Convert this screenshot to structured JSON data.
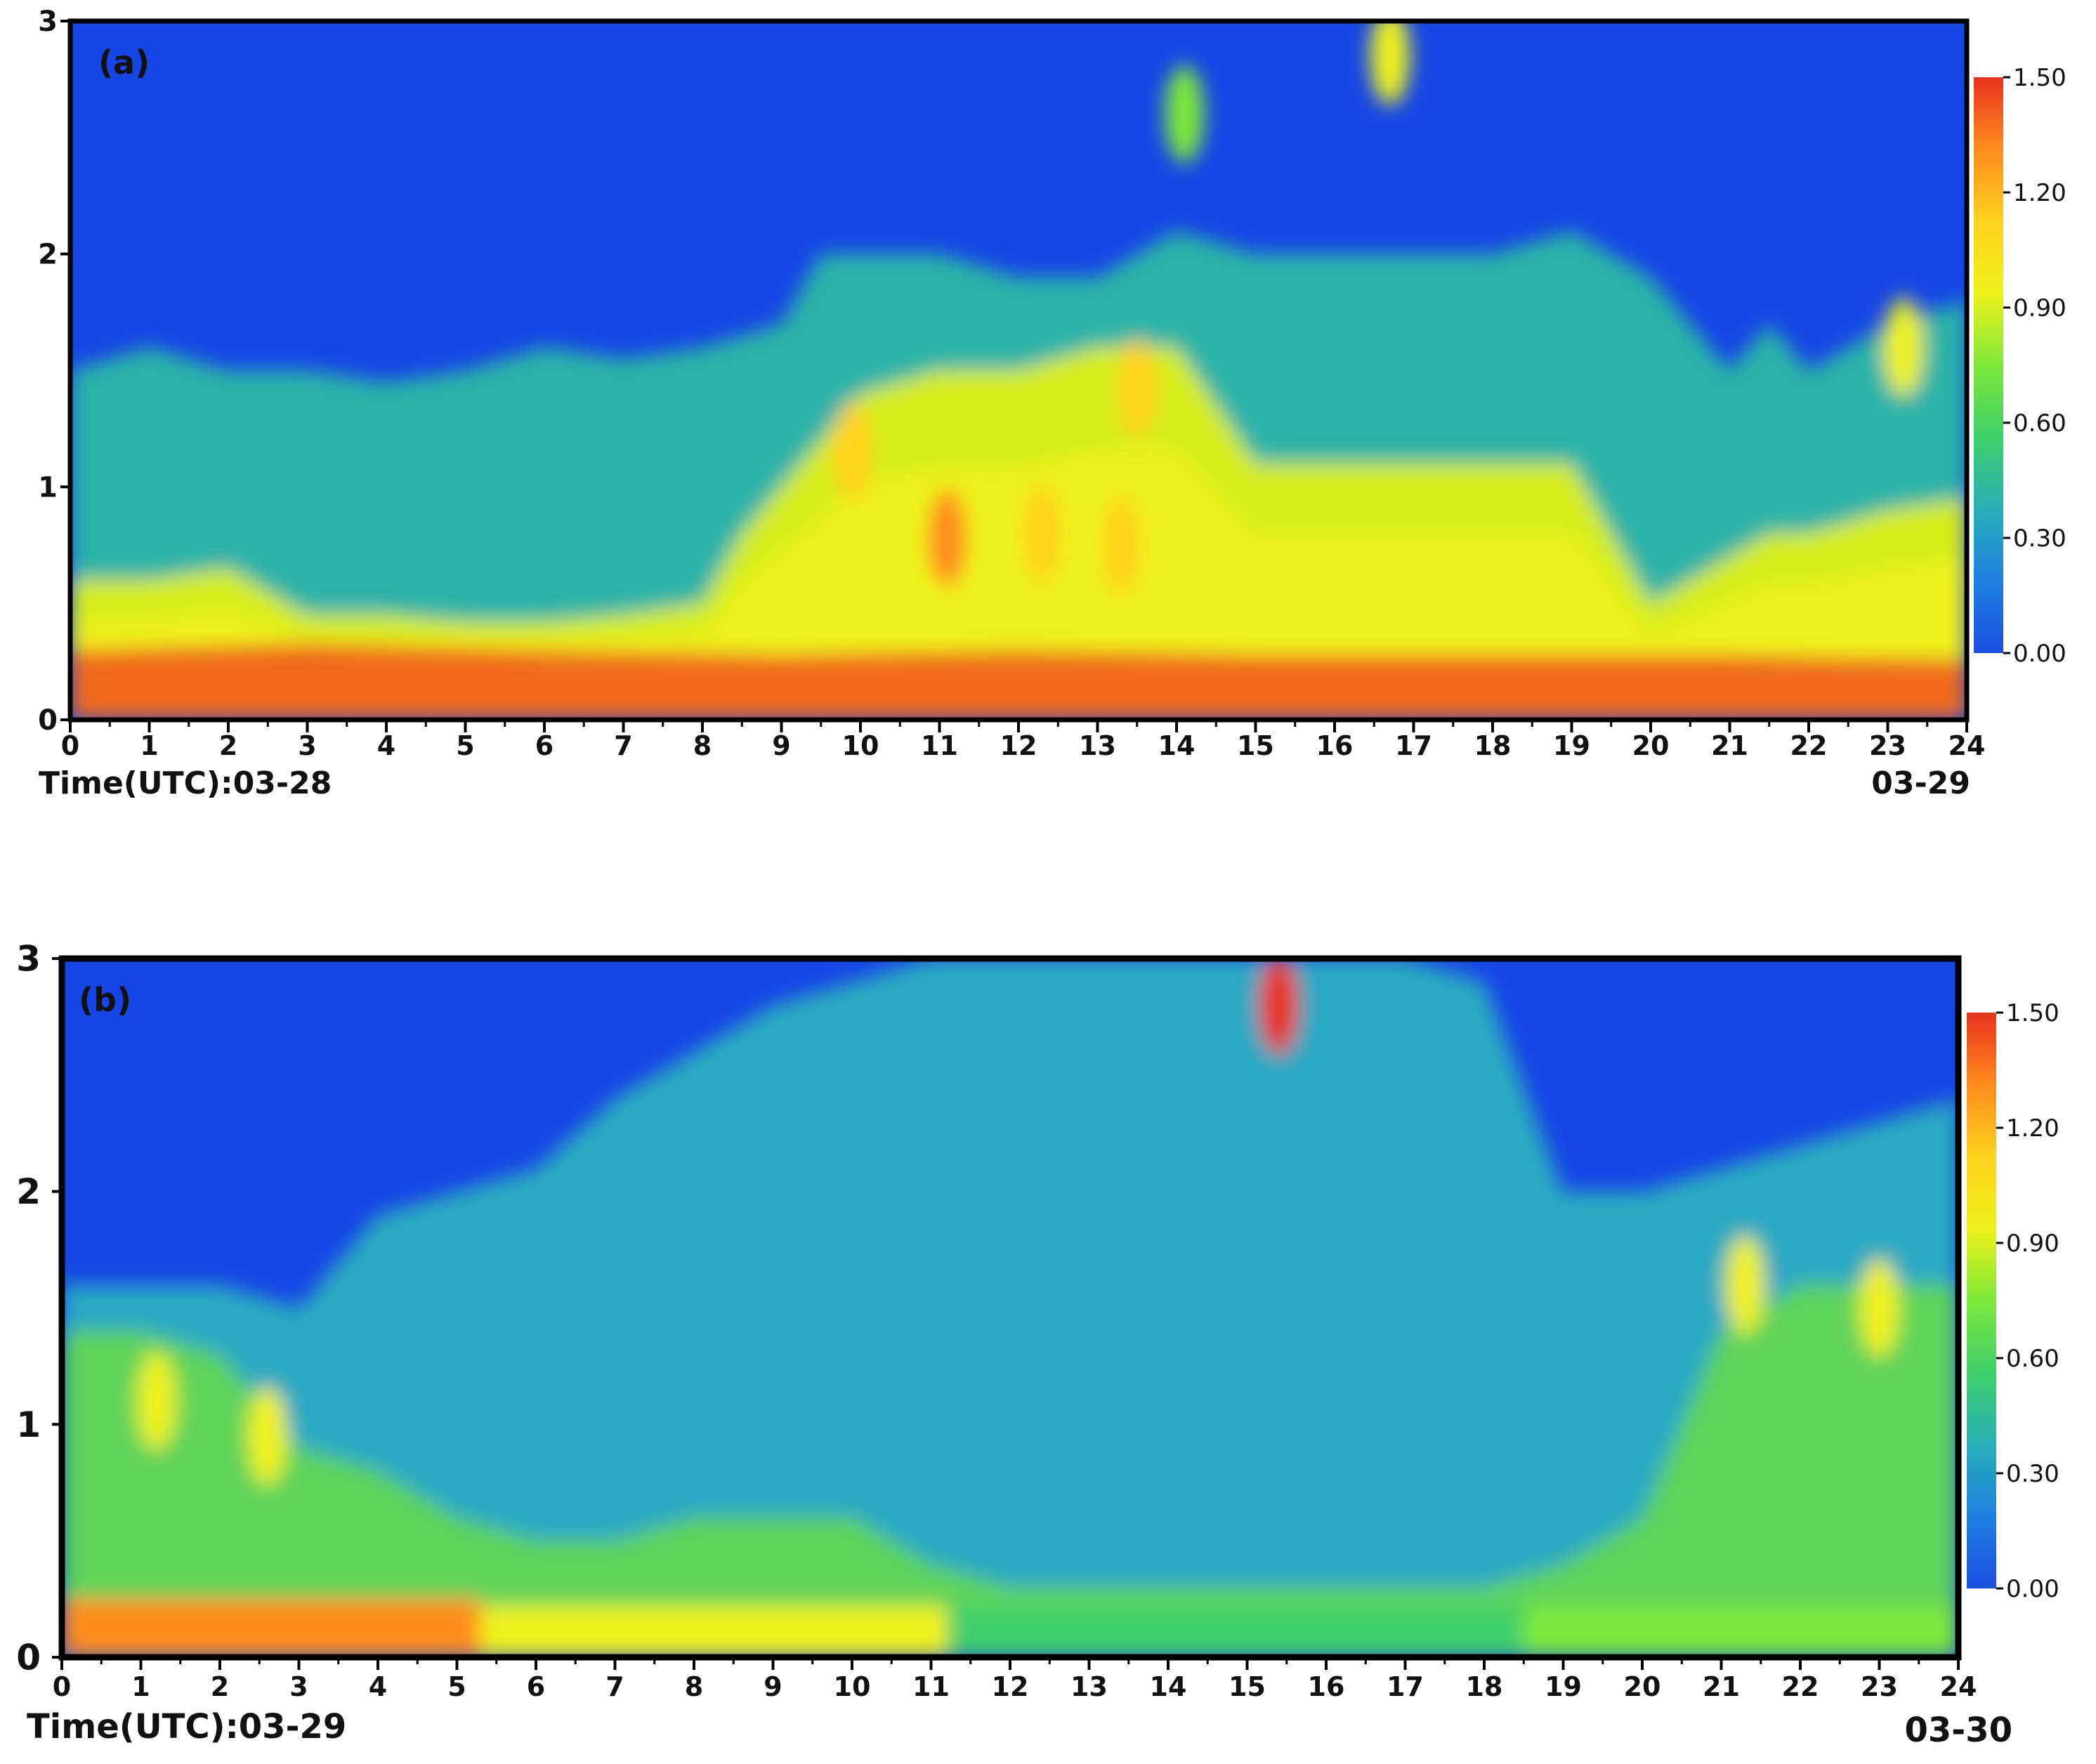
{
  "colors": {
    "scale": [
      "#1a4fe0",
      "#1f7fe0",
      "#27b0b8",
      "#3fcf6a",
      "#7de83a",
      "#eef21a",
      "#ffd21e",
      "#ff8c1e",
      "#e8321e"
    ],
    "frame": "#000000",
    "low_fill": "#1646e6"
  },
  "chart_data": [
    {
      "type": "heatmap",
      "panel_label": "(a)",
      "x_start_label": "Time(UTC):03-28",
      "x_end_label": "03-29",
      "xlim": [
        0,
        24
      ],
      "ylim": [
        0,
        3
      ],
      "x_ticks": [
        "0",
        "1",
        "2",
        "3",
        "4",
        "5",
        "6",
        "7",
        "8",
        "9",
        "10",
        "11",
        "12",
        "13",
        "14",
        "15",
        "16",
        "17",
        "18",
        "19",
        "20",
        "21",
        "22",
        "23",
        "24"
      ],
      "y_ticks": [
        "0",
        "1",
        "2",
        "3"
      ],
      "colorbar": {
        "ticks": [
          "0.00",
          "0.30",
          "0.60",
          "0.90",
          "1.20",
          "1.50"
        ],
        "range": [
          0,
          1.5
        ]
      },
      "top_profile": [
        [
          0,
          1.5
        ],
        [
          1,
          1.6
        ],
        [
          2,
          1.5
        ],
        [
          3,
          1.5
        ],
        [
          4,
          1.45
        ],
        [
          5,
          1.5
        ],
        [
          6,
          1.6
        ],
        [
          7,
          1.55
        ],
        [
          8,
          1.6
        ],
        [
          9,
          1.7
        ],
        [
          9.5,
          2.0
        ],
        [
          10,
          2.0
        ],
        [
          11,
          2.0
        ],
        [
          12,
          1.9
        ],
        [
          13,
          1.9
        ],
        [
          13.5,
          2.0
        ],
        [
          14,
          2.1
        ],
        [
          15,
          2.0
        ],
        [
          16,
          2.0
        ],
        [
          17,
          2.0
        ],
        [
          18,
          2.0
        ],
        [
          19,
          2.1
        ],
        [
          20,
          1.9
        ],
        [
          21,
          1.5
        ],
        [
          21.5,
          1.7
        ],
        [
          22,
          1.5
        ],
        [
          23,
          1.7
        ],
        [
          24,
          1.8
        ]
      ],
      "mid_profile": [
        [
          0,
          0.6
        ],
        [
          1,
          0.6
        ],
        [
          2,
          0.65
        ],
        [
          3,
          0.45
        ],
        [
          4,
          0.45
        ],
        [
          5,
          0.42
        ],
        [
          6,
          0.42
        ],
        [
          7,
          0.45
        ],
        [
          8,
          0.5
        ],
        [
          8.5,
          0.8
        ],
        [
          9,
          1.0
        ],
        [
          10,
          1.4
        ],
        [
          11,
          1.5
        ],
        [
          12,
          1.5
        ],
        [
          13,
          1.6
        ],
        [
          14,
          1.6
        ],
        [
          15,
          1.1
        ],
        [
          16,
          1.1
        ],
        [
          17,
          1.1
        ],
        [
          18,
          1.1
        ],
        [
          19,
          1.1
        ],
        [
          20,
          0.5
        ],
        [
          20.5,
          0.6
        ],
        [
          21,
          0.7
        ],
        [
          21.5,
          0.8
        ],
        [
          22,
          0.8
        ],
        [
          23,
          0.9
        ],
        [
          24,
          0.95
        ]
      ],
      "base_profile": [
        [
          0,
          0.3
        ],
        [
          3,
          0.33
        ],
        [
          6,
          0.3
        ],
        [
          9,
          0.28
        ],
        [
          12,
          0.3
        ],
        [
          15,
          0.28
        ],
        [
          18,
          0.28
        ],
        [
          21,
          0.28
        ],
        [
          24,
          0.26
        ]
      ],
      "hotspots": [
        {
          "x": 9.9,
          "y": 1.15,
          "v": 1.2
        },
        {
          "x": 11.1,
          "y": 0.78,
          "v": 1.25
        },
        {
          "x": 12.3,
          "y": 0.8,
          "v": 1.05
        },
        {
          "x": 13.3,
          "y": 0.75,
          "v": 1.1
        },
        {
          "x": 13.5,
          "y": 1.42,
          "v": 1.2
        },
        {
          "x": 16.7,
          "y": 2.85,
          "v": 0.85
        },
        {
          "x": 14.1,
          "y": 2.6,
          "v": 0.8
        },
        {
          "x": 23.2,
          "y": 1.6,
          "v": 1.0
        }
      ]
    },
    {
      "type": "heatmap",
      "panel_label": "(b)",
      "x_start_label": "Time(UTC):03-29",
      "x_end_label": "03-30",
      "xlim": [
        0,
        24
      ],
      "ylim": [
        0,
        3
      ],
      "x_ticks": [
        "0",
        "1",
        "2",
        "3",
        "4",
        "5",
        "6",
        "7",
        "8",
        "9",
        "10",
        "11",
        "12",
        "13",
        "14",
        "15",
        "16",
        "17",
        "18",
        "19",
        "20",
        "21",
        "22",
        "23",
        "24"
      ],
      "y_ticks": [
        "0",
        "1",
        "2",
        "3"
      ],
      "colorbar": {
        "ticks": [
          "0.00",
          "0.30",
          "0.60",
          "0.90",
          "1.20",
          "1.50"
        ],
        "range": [
          0,
          1.5
        ]
      },
      "top_profile": [
        [
          0,
          1.6
        ],
        [
          1,
          1.6
        ],
        [
          2,
          1.6
        ],
        [
          3,
          1.5
        ],
        [
          4,
          1.9
        ],
        [
          5,
          2.0
        ],
        [
          6,
          2.1
        ],
        [
          7,
          2.4
        ],
        [
          8,
          2.6
        ],
        [
          9,
          2.8
        ],
        [
          10,
          2.9
        ],
        [
          11,
          3.0
        ],
        [
          12,
          3.0
        ],
        [
          13,
          3.0
        ],
        [
          14,
          3.0
        ],
        [
          15,
          3.0
        ],
        [
          16,
          3.0
        ],
        [
          17,
          3.0
        ],
        [
          18,
          2.9
        ],
        [
          19,
          2.0
        ],
        [
          20,
          2.0
        ],
        [
          21,
          2.1
        ],
        [
          22,
          2.2
        ],
        [
          23,
          2.3
        ],
        [
          24,
          2.4
        ]
      ],
      "mid_profile": [
        [
          0,
          1.4
        ],
        [
          1,
          1.4
        ],
        [
          2,
          1.3
        ],
        [
          3,
          0.9
        ],
        [
          4,
          0.8
        ],
        [
          5,
          0.6
        ],
        [
          6,
          0.5
        ],
        [
          7,
          0.5
        ],
        [
          8,
          0.6
        ],
        [
          9,
          0.6
        ],
        [
          10,
          0.6
        ],
        [
          11,
          0.4
        ],
        [
          12,
          0.3
        ],
        [
          13,
          0.3
        ],
        [
          14,
          0.3
        ],
        [
          15,
          0.3
        ],
        [
          16,
          0.3
        ],
        [
          17,
          0.3
        ],
        [
          18,
          0.3
        ],
        [
          19,
          0.4
        ],
        [
          20,
          0.6
        ],
        [
          21,
          1.4
        ],
        [
          22,
          1.6
        ],
        [
          23,
          1.6
        ],
        [
          24,
          1.6
        ]
      ],
      "base_profile": [
        [
          0,
          0.32
        ],
        [
          2,
          0.35
        ],
        [
          4,
          0.25
        ],
        [
          5.3,
          0.25
        ],
        [
          6,
          0.22
        ],
        [
          12,
          0.2
        ],
        [
          18,
          0.2
        ],
        [
          24,
          0.2
        ]
      ],
      "base_segments": [
        {
          "x0": 0,
          "x1": 5.3,
          "v": 1.3
        },
        {
          "x0": 5.3,
          "x1": 11.2,
          "v": 0.95
        },
        {
          "x0": 11.2,
          "x1": 18.5,
          "v": 0.6
        },
        {
          "x0": 18.5,
          "x1": 20.3,
          "v": 0.75
        },
        {
          "x0": 20.3,
          "x1": 24,
          "v": 0.7
        }
      ],
      "hotspots": [
        {
          "x": 15.4,
          "y": 2.8,
          "v": 1.5
        },
        {
          "x": 1.2,
          "y": 1.1,
          "v": 0.9
        },
        {
          "x": 2.6,
          "y": 0.95,
          "v": 0.85
        },
        {
          "x": 21.3,
          "y": 1.6,
          "v": 0.85
        },
        {
          "x": 23.0,
          "y": 1.5,
          "v": 0.95
        }
      ]
    }
  ]
}
